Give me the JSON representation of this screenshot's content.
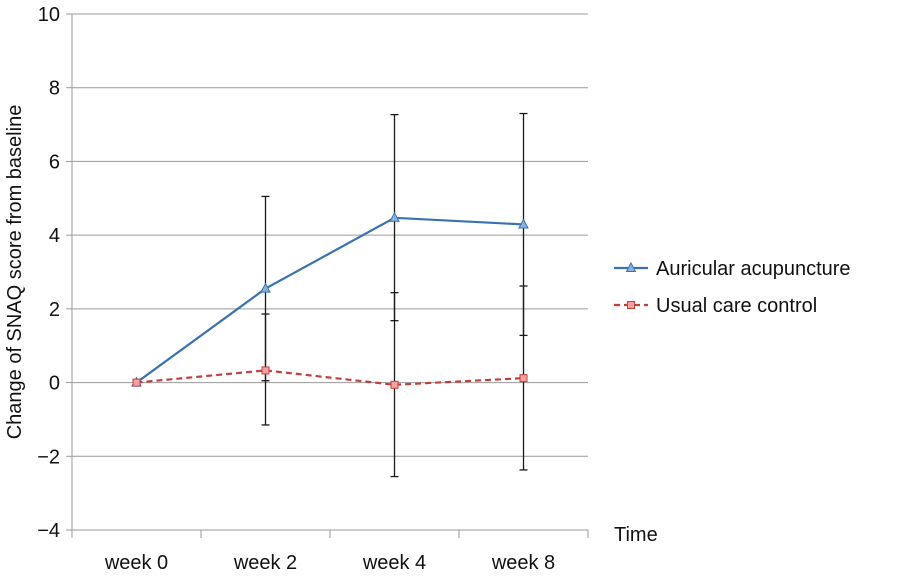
{
  "chart_data": {
    "type": "line",
    "title": "",
    "xlabel": "Time",
    "ylabel": "Change of SNAQ score from baseline",
    "categories": [
      "week 0",
      "week 2",
      "week 4",
      "week 8"
    ],
    "ylim": [
      -4,
      10
    ],
    "yticks": [
      -4,
      -2,
      0,
      2,
      4,
      6,
      8,
      10
    ],
    "grid": "horizontal",
    "legend_position": "right",
    "series": [
      {
        "name": "Auricular acupuncture",
        "values": [
          0,
          2.55,
          4.47,
          4.29
        ],
        "error_low": [
          0,
          0.05,
          1.68,
          1.28
        ],
        "error_high": [
          0,
          5.05,
          7.27,
          7.3
        ],
        "color": "#3a72b0",
        "marker": "triangle",
        "dash": "solid"
      },
      {
        "name": "Usual care control",
        "values": [
          0,
          0.33,
          -0.06,
          0.12
        ],
        "error_low": [
          0,
          -1.15,
          -2.55,
          -2.37
        ],
        "error_high": [
          0,
          1.86,
          2.44,
          2.62
        ],
        "color": "#c0403e",
        "marker": "square",
        "dash": "dashed"
      }
    ]
  }
}
